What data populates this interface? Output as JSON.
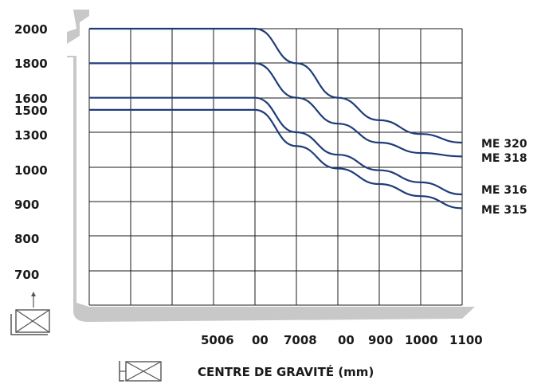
{
  "chart_data": {
    "type": "line",
    "xlabel": "CENTRE DE GRAVITÉ (mm)",
    "ylabel": "",
    "y_tick_labels": [
      "2000",
      "1800",
      "1600",
      "1500",
      "1300",
      "1000",
      "900",
      "800",
      "700"
    ],
    "x_tick_labels": [
      "5006",
      "00",
      "7008",
      "00",
      "900",
      "1000",
      "1100"
    ],
    "x": [
      400,
      500,
      600,
      700,
      800,
      900,
      1000,
      1100
    ],
    "series": [
      {
        "name": "ME 320",
        "values": [
          2000,
          2000,
          2000,
          1800,
          1600,
          1470,
          1390,
          1340
        ]
      },
      {
        "name": "ME 318",
        "values": [
          1800,
          1800,
          1800,
          1600,
          1450,
          1340,
          1280,
          1260
        ]
      },
      {
        "name": "ME 316",
        "values": [
          1600,
          1600,
          1600,
          1400,
          1270,
          1180,
          1110,
          1040
        ]
      },
      {
        "name": "ME 315",
        "values": [
          1530,
          1530,
          1530,
          1320,
          1190,
          1100,
          1030,
          960
        ]
      }
    ],
    "grid": true,
    "line_color": "#1f3c7a"
  }
}
